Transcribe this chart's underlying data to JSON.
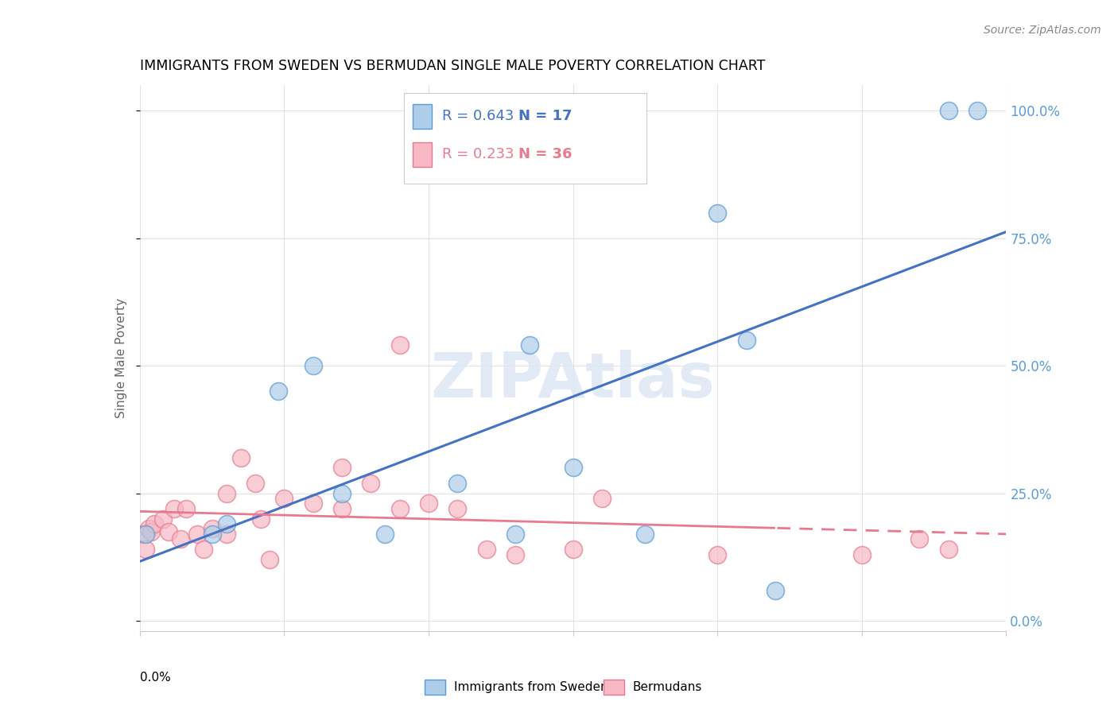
{
  "title": "IMMIGRANTS FROM SWEDEN VS BERMUDAN SINGLE MALE POVERTY CORRELATION CHART",
  "source": "Source: ZipAtlas.com",
  "ylabel": "Single Male Poverty",
  "legend_label1": "Immigrants from Sweden",
  "legend_label2": "Bermudans",
  "r1": "R = 0.643",
  "n1": "N = 17",
  "r2": "R = 0.233",
  "n2": "N = 36",
  "blue_color": "#aecde8",
  "pink_color": "#f7b8c4",
  "blue_edge_color": "#5b9bd5",
  "pink_edge_color": "#e87a90",
  "blue_line_color": "#4472c4",
  "pink_line_color": "#e87a90",
  "watermark": "ZIPAtlas",
  "blue_x": [
    0.0002,
    0.0025,
    0.003,
    0.0048,
    0.006,
    0.007,
    0.0085,
    0.011,
    0.013,
    0.0135,
    0.015,
    0.0175,
    0.02,
    0.021,
    0.022,
    0.028,
    0.029
  ],
  "blue_y": [
    0.17,
    0.17,
    0.19,
    0.45,
    0.5,
    0.25,
    0.17,
    0.27,
    0.17,
    0.54,
    0.3,
    0.17,
    0.8,
    0.55,
    0.06,
    1.0,
    1.0
  ],
  "pink_x": [
    0.0001,
    0.0002,
    0.0003,
    0.0004,
    0.0005,
    0.0008,
    0.001,
    0.0012,
    0.0014,
    0.0016,
    0.002,
    0.0022,
    0.0025,
    0.003,
    0.003,
    0.0035,
    0.004,
    0.0042,
    0.0045,
    0.005,
    0.006,
    0.007,
    0.007,
    0.008,
    0.009,
    0.009,
    0.01,
    0.011,
    0.012,
    0.013,
    0.015,
    0.016,
    0.02,
    0.025,
    0.027,
    0.028
  ],
  "pink_y": [
    0.17,
    0.14,
    0.18,
    0.175,
    0.19,
    0.2,
    0.175,
    0.22,
    0.16,
    0.22,
    0.17,
    0.14,
    0.18,
    0.17,
    0.25,
    0.32,
    0.27,
    0.2,
    0.12,
    0.24,
    0.23,
    0.3,
    0.22,
    0.27,
    0.54,
    0.22,
    0.23,
    0.22,
    0.14,
    0.13,
    0.14,
    0.24,
    0.13,
    0.13,
    0.16,
    0.14
  ],
  "xmin": 0.0,
  "xmax": 0.03,
  "ymin": 0.0,
  "ymax": 1.0,
  "y_ticks": [
    0.0,
    0.25,
    0.5,
    0.75,
    1.0
  ],
  "y_tick_labels": [
    "0.0%",
    "25.0%",
    "50.0%",
    "75.0%",
    "100.0%"
  ],
  "x_tick_positions": [
    0.0,
    0.005,
    0.01,
    0.015,
    0.02,
    0.025,
    0.03
  ],
  "right_tick_color": "#5b9bd5"
}
